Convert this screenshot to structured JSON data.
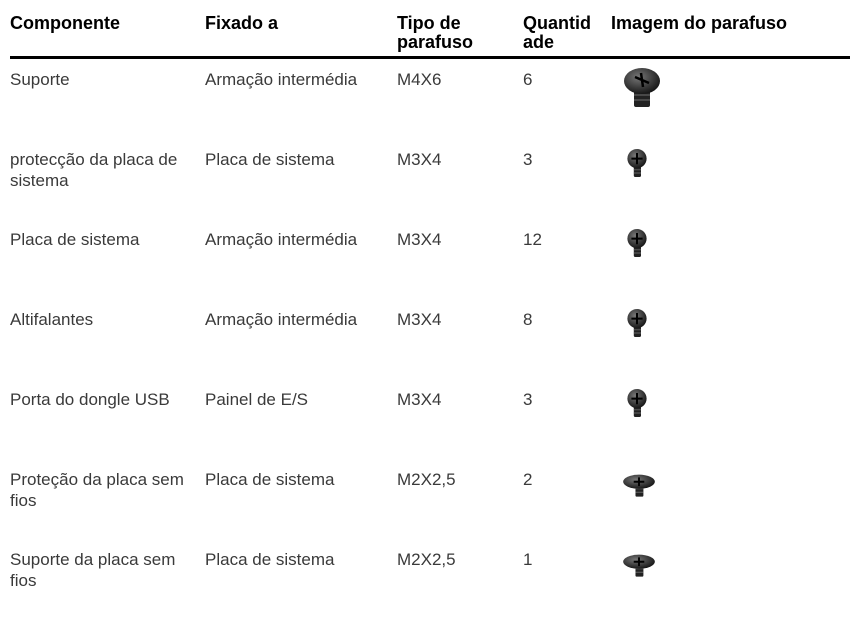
{
  "table": {
    "header": [
      "Componente",
      "Fixado a",
      "Tipo de parafuso",
      "Quantidade",
      "Imagem do parafuso"
    ],
    "rows": [
      [
        "Suporte",
        "Armação intermédia",
        "M4X6",
        "6"
      ],
      [
        "protecção da placa de sistema",
        "Placa de sistema",
        "M3X4",
        "3"
      ],
      [
        "Placa de sistema",
        "Armação intermédia",
        "M3X4",
        "12"
      ],
      [
        "Altifalantes",
        "Armação intermédia",
        "M3X4",
        "8"
      ],
      [
        "Porta do dongle USB",
        "Painel de E/S",
        "M3X4",
        "3"
      ],
      [
        "Proteção da placa sem fios",
        "Placa de sistema",
        "M2X2,5",
        "2"
      ],
      [
        "Suporte da placa sem fios",
        "Placa de sistema",
        "M2X2,5",
        "1"
      ]
    ]
  }
}
